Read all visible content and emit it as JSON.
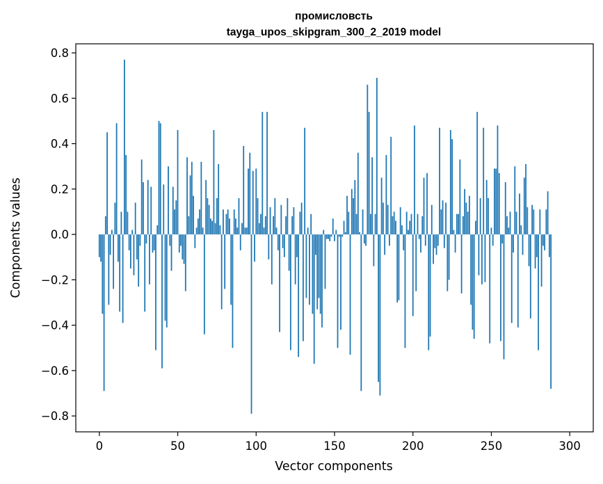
{
  "chart_data": {
    "type": "bar",
    "title_line1": "промисловсть",
    "title_line2": "tayga_upos_skipgram_300_2_2019 model",
    "xlabel": "Vector components",
    "ylabel": "Components values",
    "xlim": [
      -15,
      315
    ],
    "ylim": [
      -0.87,
      0.84
    ],
    "xticks": [
      0,
      50,
      100,
      150,
      200,
      250,
      300
    ],
    "xtick_labels": [
      "0",
      "50",
      "100",
      "150",
      "200",
      "250",
      "300"
    ],
    "yticks": [
      -0.8,
      -0.6,
      -0.4,
      -0.2,
      0.0,
      0.2,
      0.4,
      0.6,
      0.8
    ],
    "ytick_labels": [
      "−0.8",
      "−0.6",
      "−0.4",
      "−0.2",
      "0.0",
      "0.2",
      "0.4",
      "0.6",
      "0.8"
    ],
    "bar_color": "#1f77b4",
    "values": [
      -0.1,
      -0.12,
      -0.35,
      -0.69,
      0.08,
      0.45,
      -0.31,
      -0.09,
      0.02,
      -0.24,
      0.14,
      0.49,
      -0.12,
      -0.34,
      0.1,
      -0.39,
      0.77,
      0.35,
      0.1,
      -0.07,
      -0.15,
      0.02,
      -0.18,
      0.14,
      -0.11,
      -0.23,
      -0.05,
      0.33,
      0.23,
      -0.34,
      -0.04,
      0.24,
      -0.22,
      0.21,
      -0.08,
      -0.07,
      -0.51,
      0.04,
      0.5,
      0.49,
      -0.59,
      0.22,
      -0.38,
      -0.41,
      0.3,
      -0.05,
      -0.16,
      0.21,
      0.11,
      0.15,
      0.46,
      -0.08,
      -0.05,
      -0.11,
      -0.13,
      -0.25,
      0.34,
      0.08,
      0.26,
      0.32,
      0.17,
      -0.06,
      0.03,
      0.07,
      0.11,
      0.32,
      0.03,
      -0.44,
      0.24,
      0.16,
      0.13,
      0.07,
      0.06,
      0.46,
      0.05,
      0.16,
      0.31,
      0.04,
      -0.33,
      0.11,
      -0.24,
      0.09,
      0.11,
      0.07,
      -0.31,
      -0.5,
      0.11,
      0.07,
      0.03,
      0.16,
      -0.07,
      0.05,
      0.39,
      0.03,
      0.03,
      0.29,
      0.36,
      -0.79,
      0.28,
      -0.12,
      0.29,
      0.16,
      0.05,
      0.09,
      0.54,
      0.03,
      0.08,
      0.54,
      -0.11,
      0.12,
      -0.22,
      0.08,
      0.16,
      0.03,
      -0.07,
      -0.43,
      0.13,
      -0.06,
      -0.1,
      0.08,
      0.16,
      -0.16,
      -0.51,
      0.08,
      0.12,
      -0.22,
      -0.1,
      -0.54,
      0.1,
      0.14,
      -0.47,
      0.47,
      -0.28,
      0.03,
      -0.31,
      0.09,
      -0.35,
      -0.57,
      -0.09,
      -0.33,
      -0.28,
      -0.35,
      -0.41,
      0.02,
      -0.24,
      -0.02,
      -0.02,
      -0.03,
      -0.01,
      0.07,
      -0.03,
      0.02,
      -0.5,
      -0.01,
      -0.42,
      -0.01,
      0.06,
      0.01,
      0.17,
      0.1,
      -0.53,
      0.2,
      0.16,
      0.24,
      0.09,
      0.36,
      0.01,
      -0.69,
      0.11,
      -0.04,
      -0.05,
      0.66,
      0.54,
      0.09,
      0.34,
      -0.14,
      0.09,
      0.69,
      -0.65,
      -0.71,
      0.25,
      0.14,
      -0.09,
      0.35,
      0.13,
      -0.05,
      0.43,
      0.08,
      0.1,
      0.06,
      -0.3,
      -0.29,
      0.12,
      0.04,
      -0.07,
      -0.5,
      0.1,
      0.02,
      0.06,
      0.09,
      -0.36,
      0.48,
      -0.25,
      0.09,
      -0.02,
      -0.08,
      0.08,
      0.25,
      -0.05,
      0.27,
      -0.51,
      -0.45,
      0.13,
      -0.13,
      -0.06,
      -0.09,
      -0.05,
      0.47,
      0.11,
      0.15,
      -0.06,
      0.14,
      -0.25,
      -0.2,
      0.46,
      0.42,
      0.02,
      -0.08,
      0.09,
      0.09,
      0.33,
      -0.26,
      0.08,
      0.2,
      0.14,
      0.1,
      0.17,
      -0.31,
      -0.42,
      -0.46,
      0.06,
      0.54,
      -0.18,
      0.16,
      -0.22,
      0.47,
      -0.21,
      0.24,
      0.16,
      -0.48,
      0.03,
      -0.05,
      0.29,
      0.29,
      0.48,
      0.27,
      -0.47,
      -0.04,
      -0.55,
      0.23,
      0.08,
      0.03,
      0.1,
      -0.39,
      -0.08,
      0.3,
      0.1,
      -0.41,
      0.18,
      0.04,
      -0.09,
      0.25,
      0.31,
      0.12,
      -0.14,
      -0.37,
      0.13,
      0.11,
      -0.15,
      -0.1,
      -0.51,
      0.11,
      -0.23,
      -0.05,
      -0.07,
      0.11,
      0.19,
      -0.1,
      -0.68
    ]
  }
}
